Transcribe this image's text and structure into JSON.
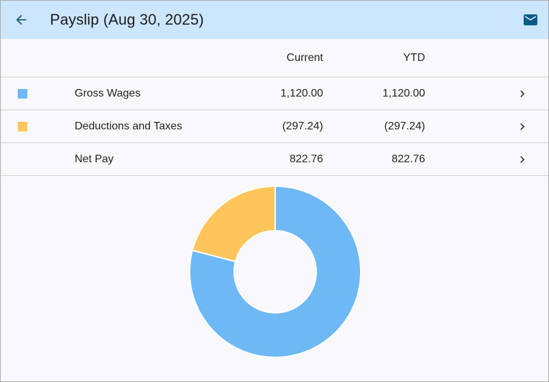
{
  "header": {
    "title": "Payslip (Aug 30, 2025)",
    "back_icon": "arrow-back-icon",
    "mail_icon": "mail-icon",
    "color": "#cce6ff"
  },
  "table": {
    "columns": {
      "current": "Current",
      "ytd": "YTD"
    },
    "rows": [
      {
        "label": "Gross Wages",
        "current": "1,120.00",
        "ytd": "1,120.00",
        "color": "#6db8f5"
      },
      {
        "label": "Deductions and Taxes",
        "current": "(297.24)",
        "ytd": "(297.24)",
        "color": "#fec55b"
      },
      {
        "label": "Net Pay",
        "current": "822.76",
        "ytd": "822.76",
        "color": ""
      }
    ]
  },
  "chart_data": {
    "type": "pie",
    "donut": true,
    "categories": [
      "Gross Wages",
      "Deductions and Taxes"
    ],
    "values": [
      1120.0,
      297.24
    ],
    "colors": [
      "#6db8f5",
      "#fec55b"
    ]
  }
}
